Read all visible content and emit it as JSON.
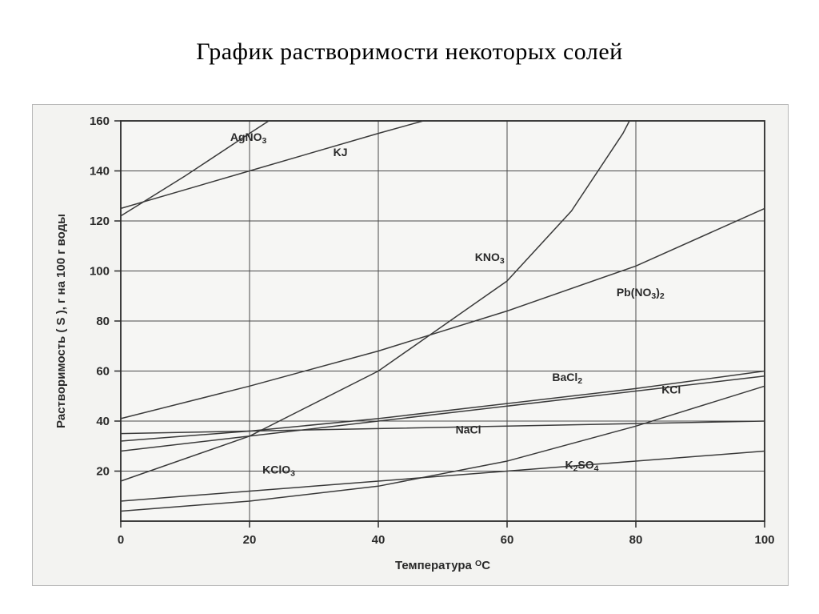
{
  "title": "График   растворимости  некоторых солей",
  "chart": {
    "type": "line",
    "background_color": "#f3f3f1",
    "plot_background": "#f6f6f4",
    "grid_color": "#4a4a4a",
    "axis_color": "#2a2a2a",
    "xlabel": "Температура",
    "xlabel_unit_prefix": "O",
    "xlabel_unit": "C",
    "ylabel": "Растворимость ( S ), г на 100 г воды",
    "label_fontsize": 15,
    "tick_fontsize": 15,
    "series_label_fontsize": 14,
    "xlim": [
      0,
      100
    ],
    "ylim": [
      0,
      160
    ],
    "xtick_step": 20,
    "ytick_step": 20,
    "line_color": "#3a3a3a",
    "line_width": 1.5,
    "series": [
      {
        "name": "AgNO3",
        "label": "AgNO3",
        "label_sub_after": "3",
        "label_pre": "AgNO",
        "label_pos": {
          "x": 17,
          "y": 152
        },
        "points": [
          {
            "x": 0,
            "y": 122
          },
          {
            "x": 10,
            "y": 138
          },
          {
            "x": 20,
            "y": 155
          },
          {
            "x": 23,
            "y": 160
          }
        ]
      },
      {
        "name": "KJ",
        "label": "KJ",
        "label_pre": "KJ",
        "label_sub_after": "",
        "label_pos": {
          "x": 33,
          "y": 146
        },
        "points": [
          {
            "x": 0,
            "y": 125
          },
          {
            "x": 20,
            "y": 140
          },
          {
            "x": 40,
            "y": 155
          },
          {
            "x": 47,
            "y": 160
          }
        ]
      },
      {
        "name": "KNO3",
        "label": "KNO3",
        "label_pre": "KNO",
        "label_sub_after": "3",
        "label_pos": {
          "x": 55,
          "y": 104
        },
        "points": [
          {
            "x": 0,
            "y": 16
          },
          {
            "x": 20,
            "y": 34
          },
          {
            "x": 40,
            "y": 60
          },
          {
            "x": 60,
            "y": 96
          },
          {
            "x": 70,
            "y": 124
          },
          {
            "x": 78,
            "y": 155
          },
          {
            "x": 79,
            "y": 160
          }
        ]
      },
      {
        "name": "Pb(NO3)2",
        "label": "Pb(NO3)2",
        "label_pre": "Pb(NO",
        "label_sub_after": "3",
        "label_tail": ")",
        "label_sub2": "2",
        "label_pos": {
          "x": 77,
          "y": 90
        },
        "points": [
          {
            "x": 0,
            "y": 41
          },
          {
            "x": 20,
            "y": 54
          },
          {
            "x": 40,
            "y": 68
          },
          {
            "x": 60,
            "y": 84
          },
          {
            "x": 80,
            "y": 102
          },
          {
            "x": 100,
            "y": 125
          }
        ]
      },
      {
        "name": "BaCl2",
        "label": "BaCl2",
        "label_pre": "BaCl",
        "label_sub_after": "2",
        "label_pos": {
          "x": 67,
          "y": 56
        },
        "points": [
          {
            "x": 0,
            "y": 32
          },
          {
            "x": 20,
            "y": 36
          },
          {
            "x": 40,
            "y": 41
          },
          {
            "x": 60,
            "y": 47
          },
          {
            "x": 80,
            "y": 53
          },
          {
            "x": 100,
            "y": 60
          }
        ]
      },
      {
        "name": "KCl",
        "label": "KCl",
        "label_pre": "KCl",
        "label_sub_after": "",
        "label_pos": {
          "x": 84,
          "y": 51
        },
        "points": [
          {
            "x": 0,
            "y": 28
          },
          {
            "x": 20,
            "y": 34
          },
          {
            "x": 40,
            "y": 40
          },
          {
            "x": 60,
            "y": 46
          },
          {
            "x": 80,
            "y": 52
          },
          {
            "x": 100,
            "y": 58
          }
        ]
      },
      {
        "name": "NaCl",
        "label": "NaCl",
        "label_pre": "NaCl",
        "label_sub_after": "",
        "label_pos": {
          "x": 52,
          "y": 35
        },
        "points": [
          {
            "x": 0,
            "y": 35
          },
          {
            "x": 20,
            "y": 36
          },
          {
            "x": 40,
            "y": 37
          },
          {
            "x": 60,
            "y": 38
          },
          {
            "x": 80,
            "y": 39
          },
          {
            "x": 100,
            "y": 40
          }
        ]
      },
      {
        "name": "KClO3",
        "label": "KClO3",
        "label_pre": "KClO",
        "label_sub_after": "3",
        "label_pos": {
          "x": 22,
          "y": 19
        },
        "points": [
          {
            "x": 0,
            "y": 4
          },
          {
            "x": 20,
            "y": 8
          },
          {
            "x": 40,
            "y": 14
          },
          {
            "x": 60,
            "y": 24
          },
          {
            "x": 80,
            "y": 38
          },
          {
            "x": 100,
            "y": 54
          }
        ]
      },
      {
        "name": "K2SO4",
        "label": "K2SO4",
        "label_pre": "K",
        "label_sub_after": "2",
        "label_tail": "SO",
        "label_sub2": "4",
        "label_pos": {
          "x": 69,
          "y": 21
        },
        "points": [
          {
            "x": 0,
            "y": 8
          },
          {
            "x": 20,
            "y": 12
          },
          {
            "x": 40,
            "y": 16
          },
          {
            "x": 60,
            "y": 20
          },
          {
            "x": 80,
            "y": 24
          },
          {
            "x": 100,
            "y": 28
          }
        ]
      }
    ]
  }
}
